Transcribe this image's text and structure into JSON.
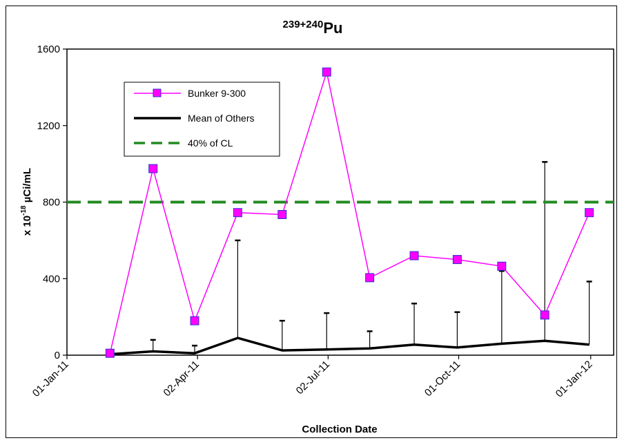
{
  "chart_data": {
    "type": "line",
    "title": {
      "superscript": "239+240",
      "main": "Pu"
    },
    "xlabel": "Collection Date",
    "ylabel": {
      "prefix": "x 10",
      "exponent": "-18",
      "unit": " µCi/mL"
    },
    "ylim": [
      0,
      1600
    ],
    "yticks": [
      0,
      400,
      800,
      1200,
      1600
    ],
    "xlim": [
      "2011-01-01",
      "2012-01-17"
    ],
    "xticks": [
      {
        "date": "2011-01-01",
        "label": "01-Jan-11"
      },
      {
        "date": "2011-04-02",
        "label": "02-Apr-11"
      },
      {
        "date": "2011-07-02",
        "label": "02-Jul-11"
      },
      {
        "date": "2011-10-01",
        "label": "01-Oct-11"
      },
      {
        "date": "2012-01-01",
        "label": "01-Jan-12"
      }
    ],
    "grid": false,
    "legend_position": "top-left",
    "series": [
      {
        "name": "Bunker 9-300",
        "color": "#ff00ff",
        "marker_fill": "#ff00ff",
        "marker_edge": "#3333cc",
        "x": [
          "2011-01-31",
          "2011-03-02",
          "2011-03-31",
          "2011-04-30",
          "2011-05-31",
          "2011-07-01",
          "2011-07-31",
          "2011-08-31",
          "2011-09-30",
          "2011-10-31",
          "2011-11-30",
          "2011-12-31"
        ],
        "values": [
          10,
          975,
          180,
          745,
          735,
          1480,
          405,
          520,
          500,
          465,
          210,
          745
        ]
      },
      {
        "name": "Mean of Others",
        "color": "#000000",
        "x": [
          "2011-01-31",
          "2011-03-02",
          "2011-03-31",
          "2011-04-30",
          "2011-05-31",
          "2011-07-01",
          "2011-07-31",
          "2011-08-31",
          "2011-09-30",
          "2011-10-31",
          "2011-11-30",
          "2011-12-31"
        ],
        "values": [
          5,
          20,
          10,
          90,
          25,
          30,
          35,
          55,
          40,
          60,
          75,
          55
        ],
        "error_upper": [
          5,
          80,
          50,
          600,
          180,
          220,
          125,
          270,
          225,
          440,
          1010,
          385
        ]
      },
      {
        "name": "40% of CL",
        "color": "#228b22",
        "style": "dashed",
        "constant": 800
      }
    ]
  }
}
